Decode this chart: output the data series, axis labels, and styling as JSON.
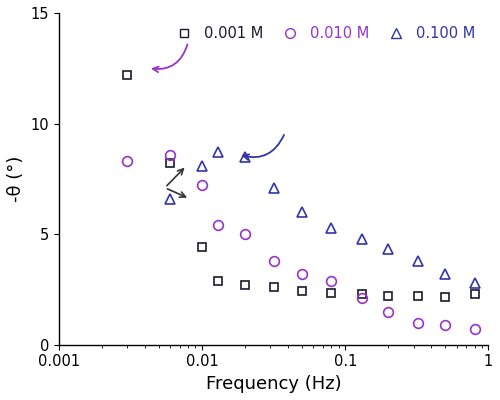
{
  "title": "",
  "xlabel": "Frequency (Hz)",
  "ylabel": "-θ (°)",
  "ylim": [
    0.0,
    15.0
  ],
  "yticks": [
    0.0,
    5.0,
    10.0,
    15.0
  ],
  "series": [
    {
      "label": "0.001 M",
      "color": "#1a1a2e",
      "marker": "s",
      "markersize": 6,
      "x": [
        0.003,
        0.006,
        0.01,
        0.013,
        0.02,
        0.032,
        0.05,
        0.08,
        0.13,
        0.2,
        0.32,
        0.5,
        0.8
      ],
      "y": [
        12.2,
        8.2,
        4.4,
        2.9,
        2.7,
        2.6,
        2.45,
        2.35,
        2.3,
        2.2,
        2.2,
        2.15,
        2.3
      ]
    },
    {
      "label": "0.010 M",
      "color": "#9932cc",
      "marker": "o",
      "markersize": 7,
      "x": [
        0.003,
        0.006,
        0.01,
        0.013,
        0.02,
        0.032,
        0.05,
        0.08,
        0.13,
        0.2,
        0.32,
        0.5,
        0.8
      ],
      "y": [
        8.3,
        8.6,
        7.2,
        5.4,
        5.0,
        3.8,
        3.2,
        2.9,
        2.1,
        1.5,
        1.0,
        0.9,
        0.7
      ]
    },
    {
      "label": "0.100 M",
      "color": "#3333aa",
      "marker": "^",
      "markersize": 7,
      "x": [
        0.006,
        0.01,
        0.013,
        0.02,
        0.032,
        0.05,
        0.08,
        0.13,
        0.2,
        0.32,
        0.5,
        0.8
      ],
      "y": [
        6.6,
        8.1,
        8.7,
        8.5,
        7.1,
        6.0,
        5.3,
        4.8,
        4.35,
        3.8,
        3.2,
        2.8
      ]
    }
  ],
  "legend_colors": [
    "#1a1a2e",
    "#9932cc",
    "#3333aa"
  ],
  "background_color": "#ffffff"
}
